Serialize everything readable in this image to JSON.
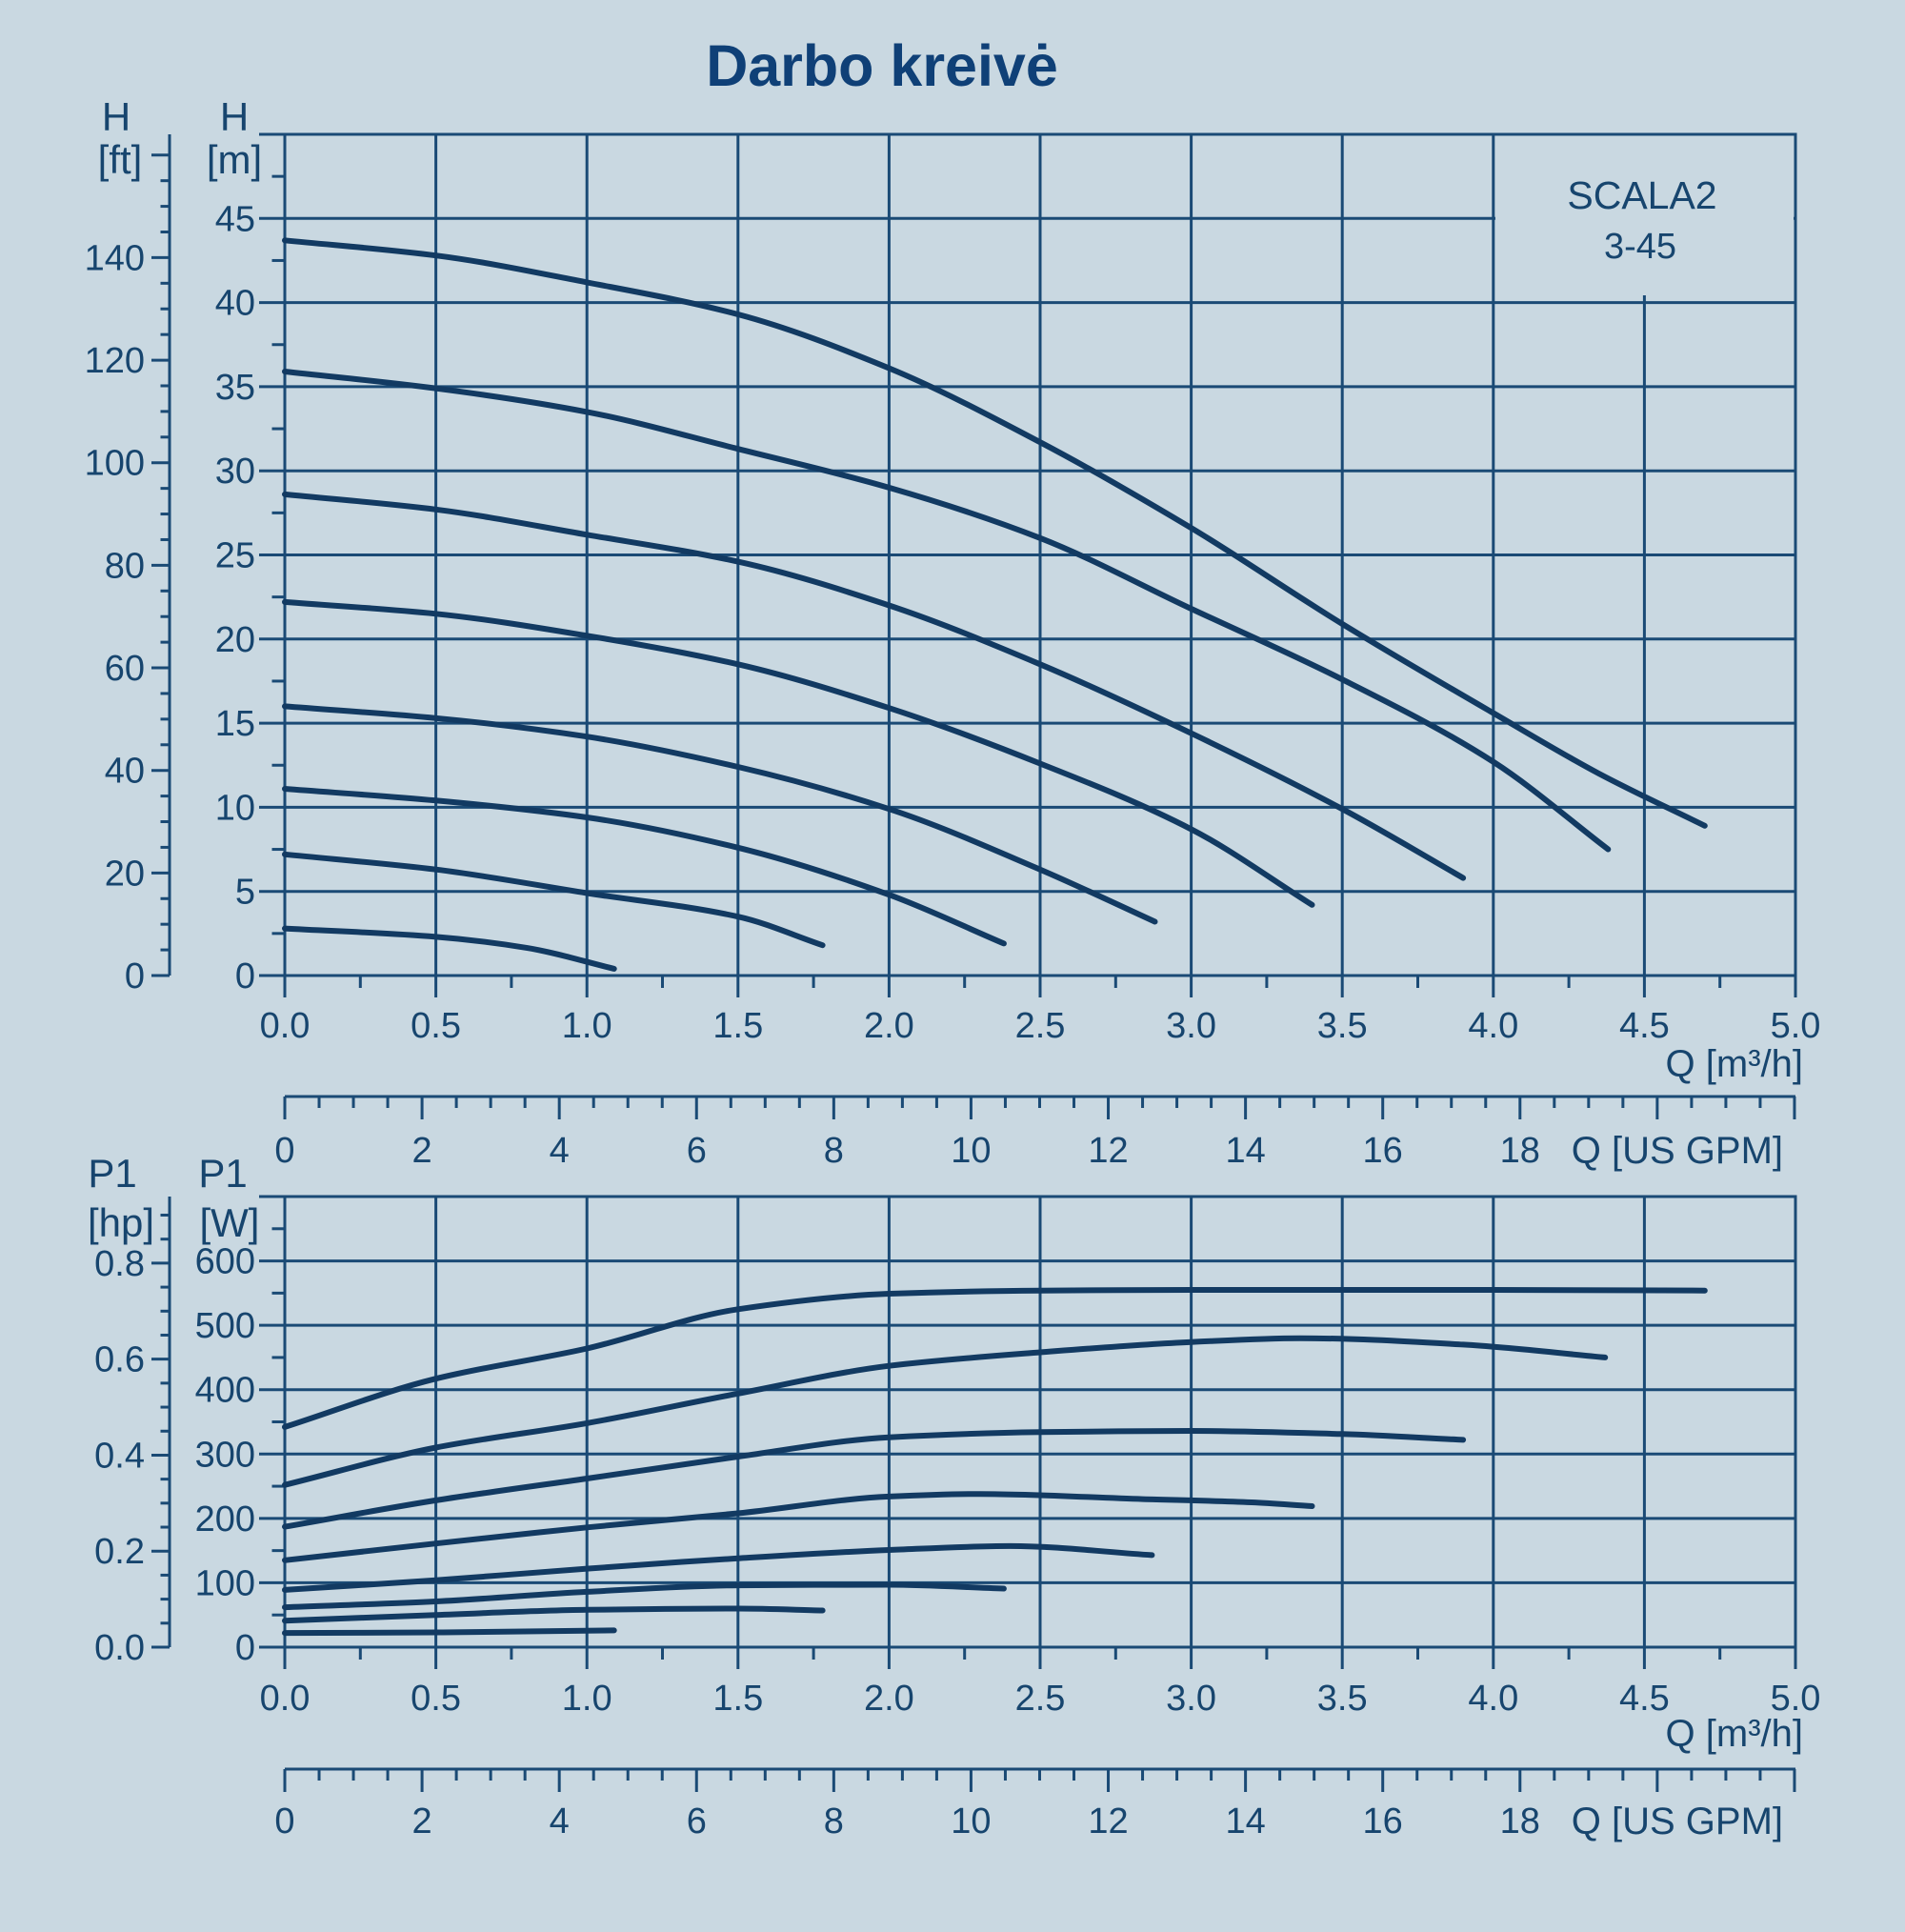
{
  "title": "Darbo kreivė",
  "model": {
    "name": "SCALA2",
    "variant": "3-45"
  },
  "colors": {
    "background": "#c9d8e1",
    "grid": "#1a4a75",
    "ink": "#17456e",
    "curve": "#123a62",
    "title_ink": "#0f4077"
  },
  "chart_data": [
    {
      "type": "line",
      "id": "head",
      "title": "Darbo kreivė",
      "y_axis": {
        "name": "H",
        "unit": "[m]",
        "tick_labels": [
          "0",
          "5",
          "10",
          "15",
          "20",
          "25",
          "30",
          "35",
          "40",
          "45"
        ],
        "tick_values": [
          0,
          5,
          10,
          15,
          20,
          25,
          30,
          35,
          40,
          45
        ],
        "minor_step": 2.5,
        "max": 50
      },
      "y_axis_secondary": {
        "name": "H",
        "unit": "[ft]",
        "tick_labels": [
          "0",
          "20",
          "40",
          "60",
          "80",
          "100",
          "120",
          "140"
        ],
        "tick_values": [
          0,
          20,
          40,
          60,
          80,
          100,
          120,
          140
        ],
        "minor_step": 5,
        "top_tick": 160,
        "primary_per_unit": 0.3048
      },
      "x_axis": {
        "unit_label": "Q [m³/h]",
        "tick_labels": [
          "0.0",
          "0.5",
          "1.0",
          "1.5",
          "2.0",
          "2.5",
          "3.0",
          "3.5",
          "4.0",
          "4.5",
          "5.0"
        ],
        "tick_values": [
          0,
          0.5,
          1,
          1.5,
          2,
          2.5,
          3,
          3.5,
          4,
          4.5,
          5
        ],
        "minor_step": 0.25,
        "max": 5
      },
      "gpm_axis": {
        "unit_label": "Q [US GPM]",
        "tick_labels": [
          "0",
          "2",
          "4",
          "6",
          "8",
          "10",
          "12",
          "14",
          "16",
          "18"
        ],
        "tick_values": [
          0,
          2,
          4,
          6,
          8,
          10,
          12,
          14,
          16,
          18
        ],
        "minor_step": 0.5,
        "major_step": 2,
        "max": 22,
        "gpm_per_m3h": 4.40287
      },
      "series": [
        {
          "name": "head-curve-1",
          "points": [
            [
              0,
              43.7
            ],
            [
              0.5,
              42.8
            ],
            [
              1.0,
              41.2
            ],
            [
              1.5,
              39.3
            ],
            [
              2.0,
              36.1
            ],
            [
              2.5,
              31.7
            ],
            [
              3.0,
              26.6
            ],
            [
              3.5,
              20.9
            ],
            [
              4.0,
              15.6
            ],
            [
              4.35,
              12.0
            ],
            [
              4.7,
              8.9
            ]
          ]
        },
        {
          "name": "head-curve-2",
          "points": [
            [
              0,
              35.9
            ],
            [
              0.5,
              34.9
            ],
            [
              1.0,
              33.5
            ],
            [
              1.5,
              31.3
            ],
            [
              2.0,
              29.0
            ],
            [
              2.5,
              26.0
            ],
            [
              3.0,
              21.8
            ],
            [
              3.5,
              17.6
            ],
            [
              4.0,
              12.7
            ],
            [
              4.38,
              7.5
            ]
          ]
        },
        {
          "name": "head-curve-3",
          "points": [
            [
              0,
              28.6
            ],
            [
              0.5,
              27.7
            ],
            [
              1.0,
              26.2
            ],
            [
              1.5,
              24.6
            ],
            [
              2.0,
              22.0
            ],
            [
              2.5,
              18.5
            ],
            [
              3.0,
              14.4
            ],
            [
              3.5,
              9.9
            ],
            [
              3.9,
              5.8
            ]
          ]
        },
        {
          "name": "head-curve-4",
          "points": [
            [
              0,
              22.2
            ],
            [
              0.5,
              21.5
            ],
            [
              1.0,
              20.2
            ],
            [
              1.5,
              18.5
            ],
            [
              2.0,
              15.9
            ],
            [
              2.5,
              12.6
            ],
            [
              3.0,
              8.7
            ],
            [
              3.4,
              4.2
            ]
          ]
        },
        {
          "name": "head-curve-5",
          "points": [
            [
              0,
              16.0
            ],
            [
              0.5,
              15.3
            ],
            [
              1.0,
              14.2
            ],
            [
              1.5,
              12.4
            ],
            [
              2.0,
              9.9
            ],
            [
              2.5,
              6.3
            ],
            [
              2.88,
              3.2
            ]
          ]
        },
        {
          "name": "head-curve-6",
          "points": [
            [
              0,
              11.1
            ],
            [
              0.5,
              10.4
            ],
            [
              1.0,
              9.4
            ],
            [
              1.5,
              7.6
            ],
            [
              2.0,
              4.8
            ],
            [
              2.38,
              1.9
            ]
          ]
        },
        {
          "name": "head-curve-7",
          "points": [
            [
              0,
              7.2
            ],
            [
              0.5,
              6.3
            ],
            [
              1.0,
              4.9
            ],
            [
              1.5,
              3.5
            ],
            [
              1.78,
              1.8
            ]
          ]
        },
        {
          "name": "head-curve-8",
          "points": [
            [
              0,
              2.8
            ],
            [
              0.5,
              2.3
            ],
            [
              0.8,
              1.65
            ],
            [
              1.09,
              0.4
            ]
          ]
        }
      ]
    },
    {
      "type": "line",
      "id": "power",
      "y_axis": {
        "name": "P1",
        "unit": "[W]",
        "tick_labels": [
          "0",
          "100",
          "200",
          "300",
          "400",
          "500",
          "600"
        ],
        "tick_values": [
          0,
          100,
          200,
          300,
          400,
          500,
          600
        ],
        "minor_step": 50,
        "max": 700
      },
      "y_axis_secondary": {
        "name": "P1",
        "unit": "[hp]",
        "tick_labels": [
          "0.0",
          "0.2",
          "0.4",
          "0.6",
          "0.8"
        ],
        "tick_values": [
          0,
          0.2,
          0.4,
          0.6,
          0.8
        ],
        "minor_step": 0.05,
        "top_tick": 0.9,
        "primary_per_unit": 745.7
      },
      "x_axis": {
        "unit_label": "Q [m³/h]",
        "tick_labels": [
          "0.0",
          "0.5",
          "1.0",
          "1.5",
          "2.0",
          "2.5",
          "3.0",
          "3.5",
          "4.0",
          "4.5",
          "5.0"
        ],
        "tick_values": [
          0,
          0.5,
          1,
          1.5,
          2,
          2.5,
          3,
          3.5,
          4,
          4.5,
          5
        ],
        "minor_step": 0.25,
        "max": 5
      },
      "gpm_axis": {
        "unit_label": "Q [US GPM]",
        "tick_labels": [
          "0",
          "2",
          "4",
          "6",
          "8",
          "10",
          "12",
          "14",
          "16",
          "18"
        ],
        "tick_values": [
          0,
          2,
          4,
          6,
          8,
          10,
          12,
          14,
          16,
          18
        ],
        "minor_step": 0.5,
        "major_step": 2,
        "max": 22,
        "gpm_per_m3h": 4.40287
      },
      "series": [
        {
          "name": "power-curve-1",
          "points": [
            [
              0,
              342
            ],
            [
              0.5,
              417
            ],
            [
              1.0,
              464
            ],
            [
              1.5,
              525
            ],
            [
              2.0,
              549
            ],
            [
              2.5,
              554
            ],
            [
              3.0,
              555
            ],
            [
              3.5,
              555
            ],
            [
              4.0,
              555
            ],
            [
              4.7,
              554
            ]
          ]
        },
        {
          "name": "power-curve-2",
          "points": [
            [
              0,
              252
            ],
            [
              0.5,
              310
            ],
            [
              1.0,
              348
            ],
            [
              1.5,
              394
            ],
            [
              2.0,
              437
            ],
            [
              2.5,
              458
            ],
            [
              3.0,
              474
            ],
            [
              3.36,
              480
            ],
            [
              3.9,
              470
            ],
            [
              4.37,
              450
            ]
          ]
        },
        {
          "name": "power-curve-3",
          "points": [
            [
              0,
              187
            ],
            [
              0.5,
              228
            ],
            [
              1.0,
              262
            ],
            [
              1.5,
              296
            ],
            [
              2.0,
              326
            ],
            [
              2.5,
              334
            ],
            [
              3.0,
              336
            ],
            [
              3.5,
              331
            ],
            [
              3.9,
              322
            ]
          ]
        },
        {
          "name": "power-curve-4",
          "points": [
            [
              0,
              135
            ],
            [
              0.5,
              161
            ],
            [
              1.0,
              186
            ],
            [
              1.5,
              208
            ],
            [
              2.0,
              234
            ],
            [
              2.3,
              238
            ],
            [
              2.84,
              230
            ],
            [
              3.2,
              225
            ],
            [
              3.4,
              219
            ]
          ]
        },
        {
          "name": "power-curve-5",
          "points": [
            [
              0,
              89
            ],
            [
              0.5,
              104
            ],
            [
              1.0,
              122
            ],
            [
              1.5,
              138
            ],
            [
              2.0,
              151
            ],
            [
              2.4,
              157
            ],
            [
              2.87,
              143
            ]
          ]
        },
        {
          "name": "power-curve-6",
          "points": [
            [
              0,
              62
            ],
            [
              0.5,
              71
            ],
            [
              1.0,
              86
            ],
            [
              1.5,
              96
            ],
            [
              2.0,
              97
            ],
            [
              2.38,
              91
            ]
          ]
        },
        {
          "name": "power-curve-7",
          "points": [
            [
              0,
              41
            ],
            [
              0.5,
              50
            ],
            [
              1.0,
              58
            ],
            [
              1.5,
              60
            ],
            [
              1.78,
              57
            ]
          ]
        },
        {
          "name": "power-curve-8",
          "points": [
            [
              0,
              22
            ],
            [
              0.5,
              23
            ],
            [
              1.09,
              26
            ]
          ]
        }
      ]
    }
  ]
}
